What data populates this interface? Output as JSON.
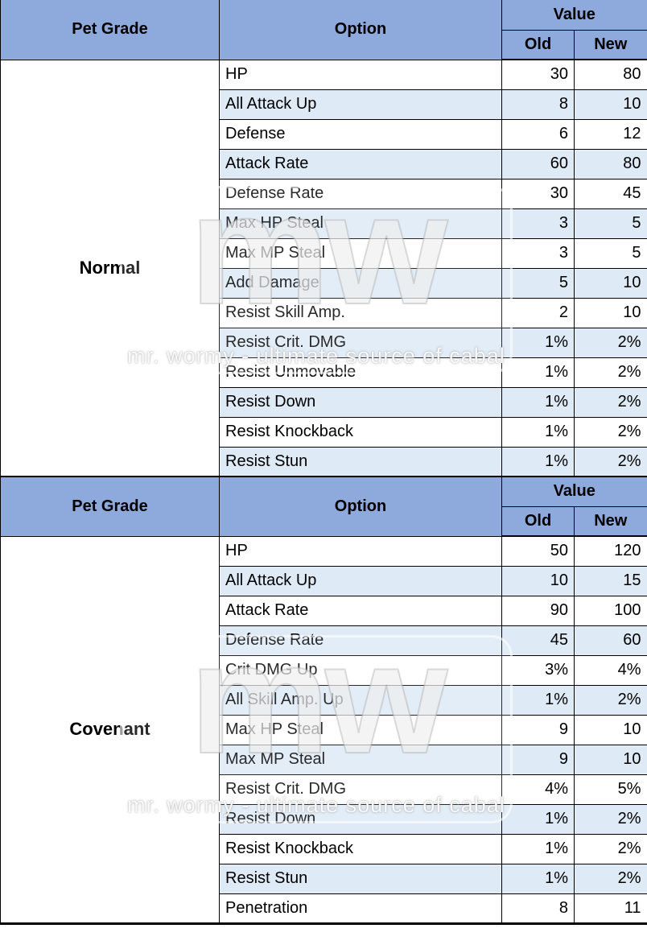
{
  "colors": {
    "header_bg": "#8EA9DB",
    "row_band_bg": "#DEEAF6",
    "border": "#000000"
  },
  "watermark": {
    "logo": "mw",
    "caption": "mr. wormy - ultimate source of cabal"
  },
  "table": {
    "columns": {
      "pet_grade": "Pet Grade",
      "option": "Option",
      "value": "Value",
      "old": "Old",
      "new": "New"
    },
    "sections": [
      {
        "grade": "Normal",
        "rows": [
          {
            "option": "HP",
            "old": "30",
            "new": "80"
          },
          {
            "option": "All Attack Up",
            "old": "8",
            "new": "10"
          },
          {
            "option": "Defense",
            "old": "6",
            "new": "12"
          },
          {
            "option": "Attack Rate",
            "old": "60",
            "new": "80"
          },
          {
            "option": "Defense Rate",
            "old": "30",
            "new": "45"
          },
          {
            "option": "Max HP Steal",
            "old": "3",
            "new": "5"
          },
          {
            "option": "Max MP Steal",
            "old": "3",
            "new": "5"
          },
          {
            "option": "Add Damage",
            "old": "5",
            "new": "10"
          },
          {
            "option": "Resist Skill Amp.",
            "old": "2",
            "new": "10"
          },
          {
            "option": "Resist Crit. DMG",
            "old": "1%",
            "new": "2%"
          },
          {
            "option": "Resist Unmovable",
            "old": "1%",
            "new": "2%"
          },
          {
            "option": "Resist Down",
            "old": "1%",
            "new": "2%"
          },
          {
            "option": "Resist Knockback",
            "old": "1%",
            "new": "2%"
          },
          {
            "option": "Resist Stun",
            "old": "1%",
            "new": "2%"
          }
        ]
      },
      {
        "grade": "Covenant",
        "rows": [
          {
            "option": "HP",
            "old": "50",
            "new": "120"
          },
          {
            "option": "All Attack Up",
            "old": "10",
            "new": "15"
          },
          {
            "option": "Attack Rate",
            "old": "90",
            "new": "100"
          },
          {
            "option": "Defense Rate",
            "old": "45",
            "new": "60"
          },
          {
            "option": "Crit DMG Up",
            "old": "3%",
            "new": "4%"
          },
          {
            "option": "All Skill Amp. Up",
            "old": "1%",
            "new": "2%"
          },
          {
            "option": "Max HP Steal",
            "old": "9",
            "new": "10"
          },
          {
            "option": "Max MP Steal",
            "old": "9",
            "new": "10"
          },
          {
            "option": "Resist Crit. DMG",
            "old": "4%",
            "new": "5%"
          },
          {
            "option": "Resist Down",
            "old": "1%",
            "new": "2%"
          },
          {
            "option": "Resist Knockback",
            "old": "1%",
            "new": "2%"
          },
          {
            "option": "Resist Stun",
            "old": "1%",
            "new": "2%"
          },
          {
            "option": "Penetration",
            "old": "8",
            "new": "11"
          }
        ]
      }
    ]
  }
}
